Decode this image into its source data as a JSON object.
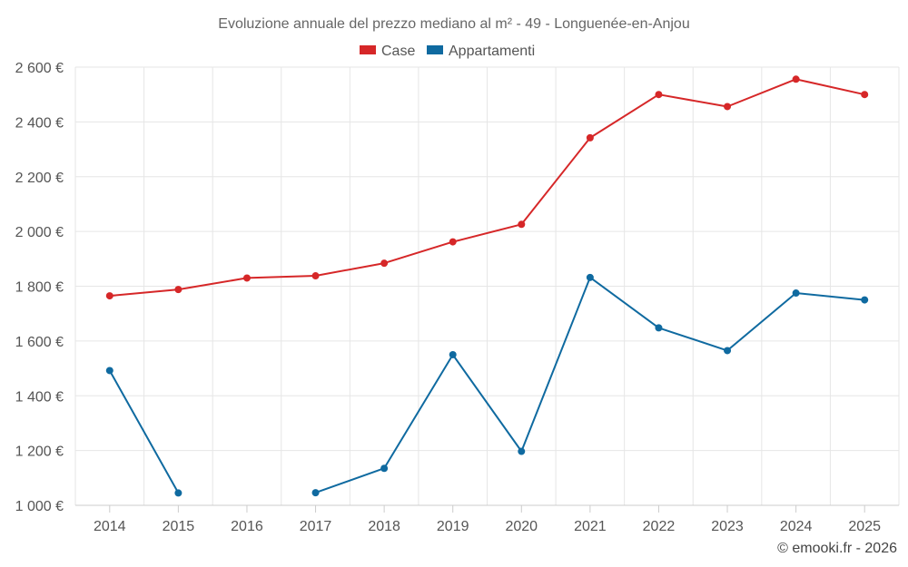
{
  "chart_data": {
    "type": "line",
    "title": "Evoluzione annuale del prezzo mediano al m² - 49 - Longuenée-en-Anjou",
    "categories": [
      "2014",
      "2015",
      "2016",
      "2017",
      "2018",
      "2019",
      "2020",
      "2021",
      "2022",
      "2023",
      "2024",
      "2025"
    ],
    "y_ticks": [
      1000,
      1200,
      1400,
      1600,
      1800,
      2000,
      2200,
      2400,
      2600
    ],
    "y_tick_labels": [
      "1 000 €",
      "1 200 €",
      "1 400 €",
      "1 600 €",
      "1 800 €",
      "2 000 €",
      "2 200 €",
      "2 400 €",
      "2 600 €"
    ],
    "ylim": [
      1000,
      2600
    ],
    "grid": true,
    "legend_position": "top-center",
    "series": [
      {
        "name": "Case",
        "color": "#d62728",
        "values": [
          1765,
          1788,
          1830,
          1838,
          1884,
          1962,
          2026,
          2342,
          2500,
          2456,
          2556,
          2500
        ]
      },
      {
        "name": "Appartamenti",
        "color": "#0f6aa0",
        "values": [
          1492,
          1045,
          null,
          1046,
          1135,
          1550,
          1197,
          1832,
          1648,
          1565,
          1775,
          1750
        ]
      }
    ]
  },
  "credit": "© emooki.fr - 2026"
}
